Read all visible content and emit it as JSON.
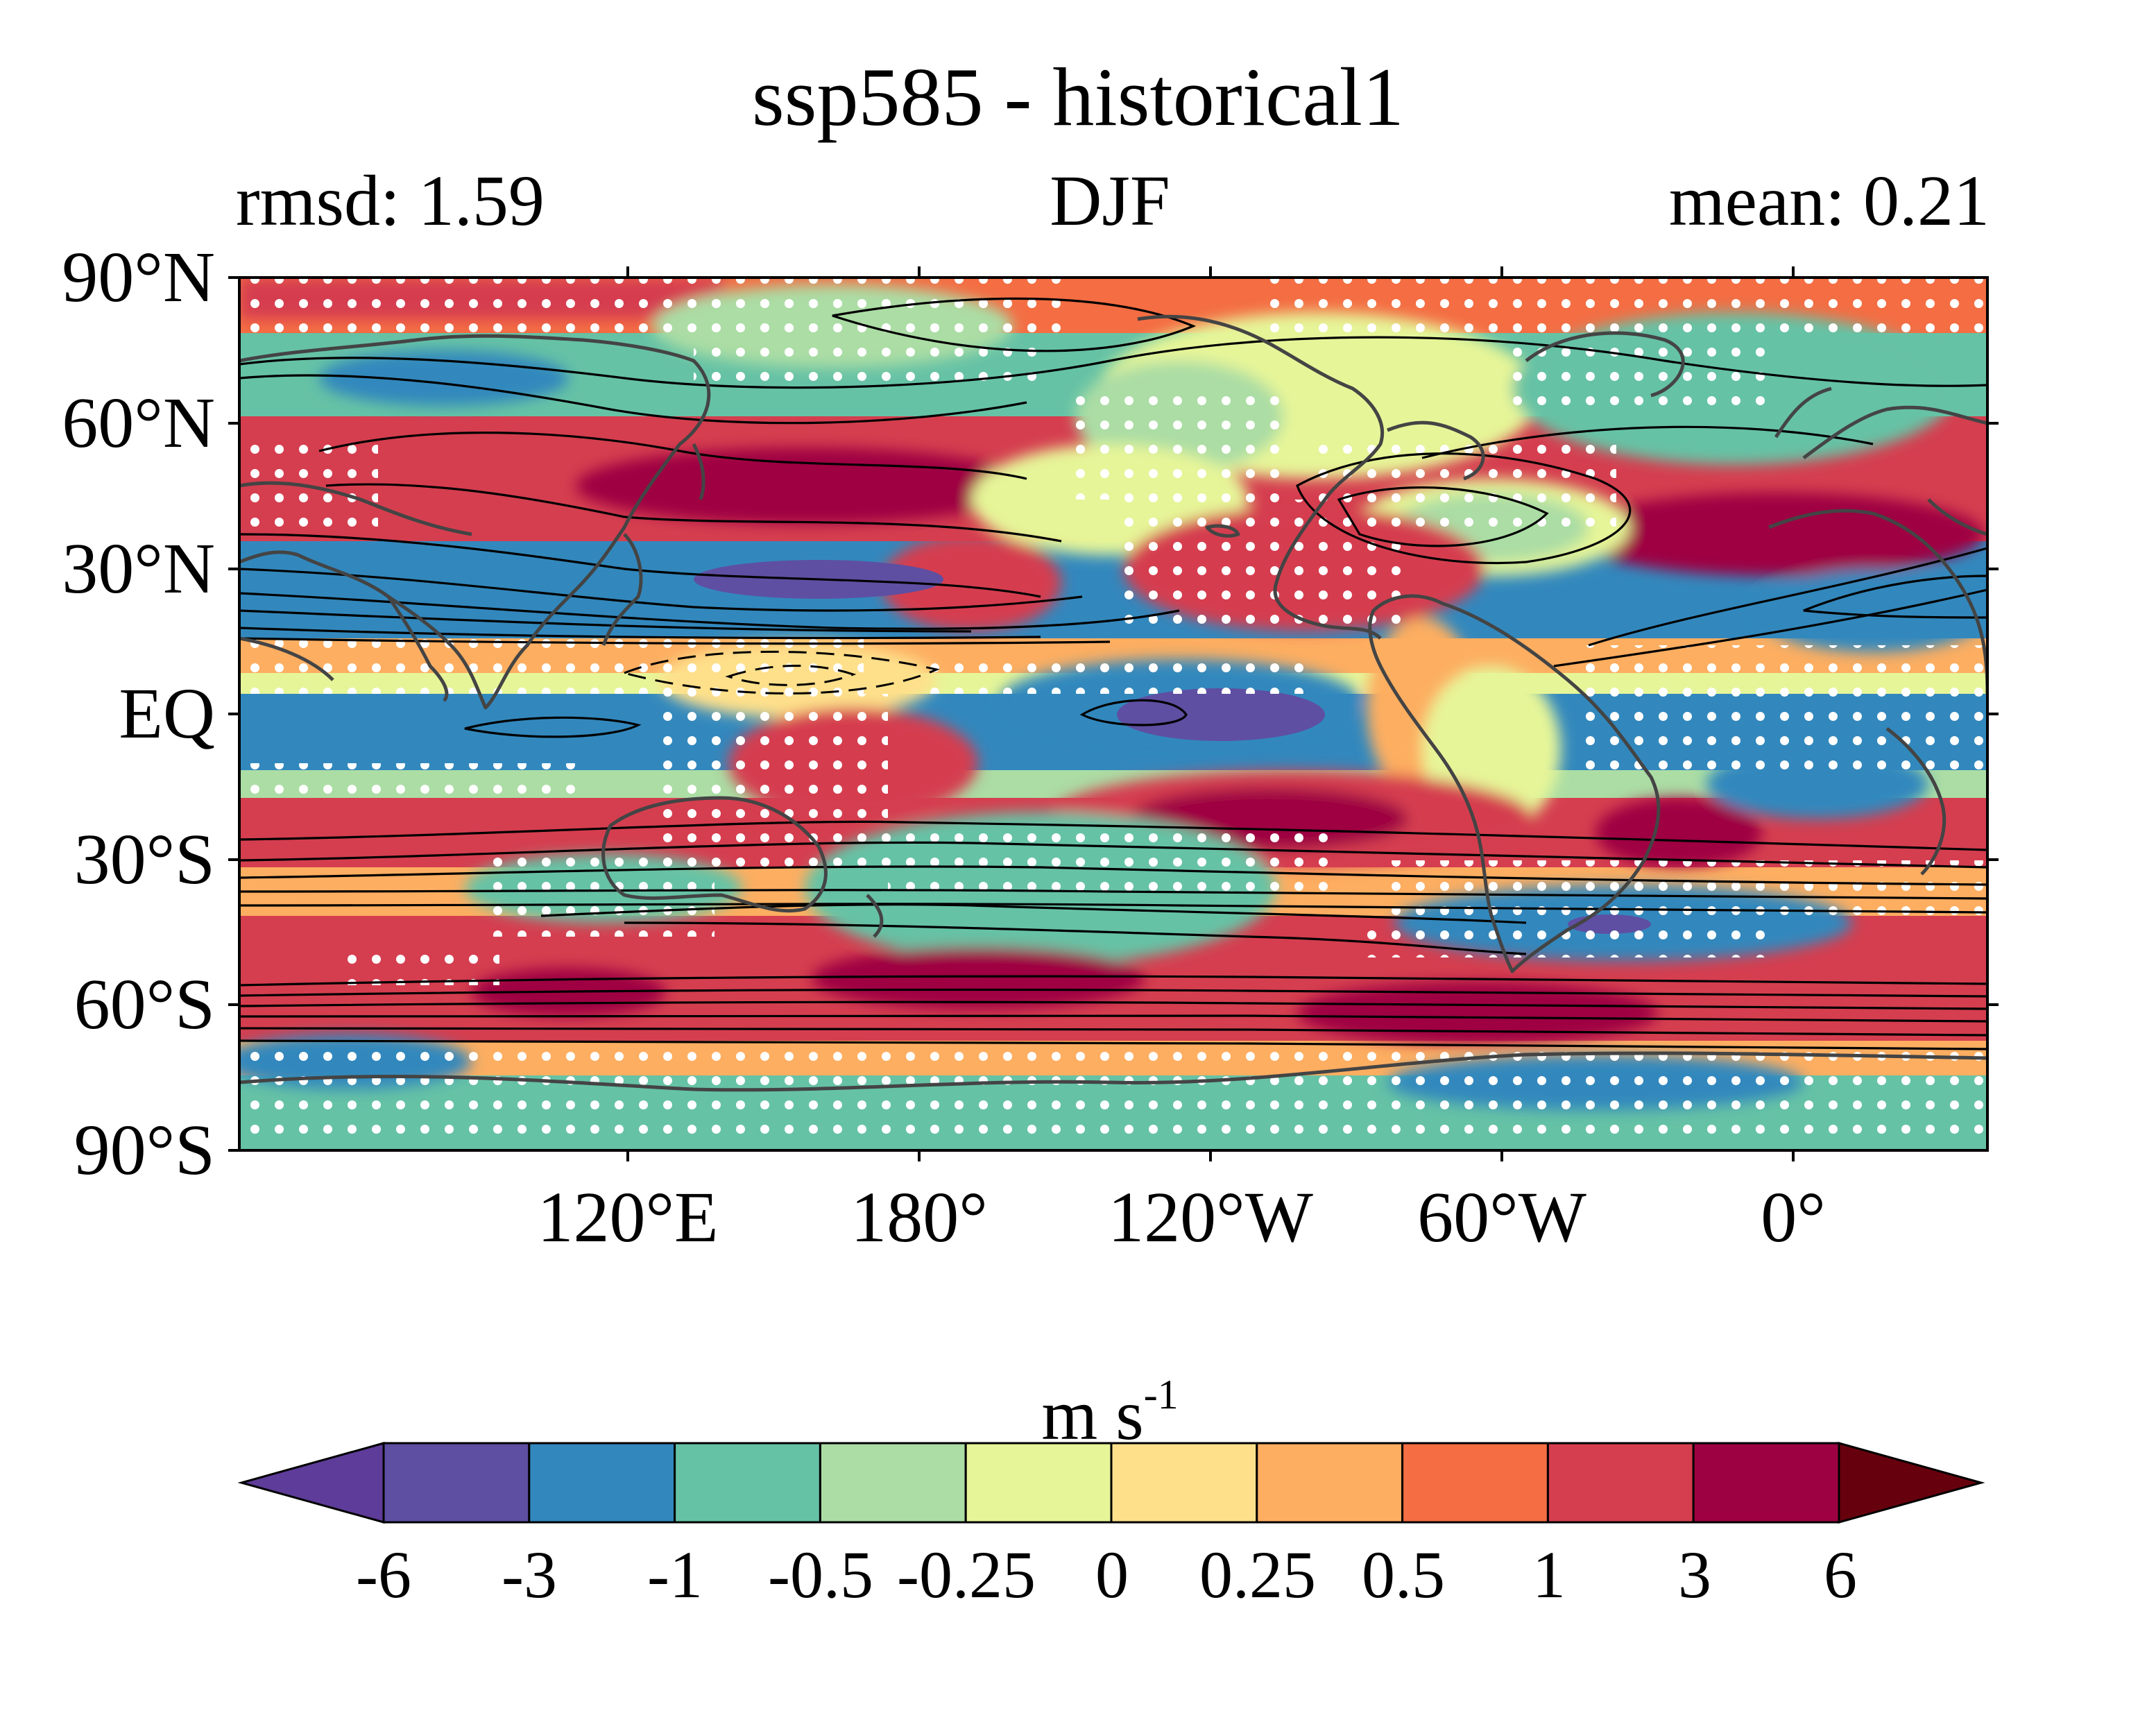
{
  "figure": {
    "title": "ssp585 - historical1",
    "rmsd_label": "rmsd: 1.59",
    "season": "DJF",
    "mean_label": "mean: 0.21"
  },
  "map": {
    "lat_labels": [
      "90°N",
      "60°N",
      "30°N",
      "EQ",
      "30°S",
      "60°S",
      "90°S"
    ],
    "lon_labels": [
      "120°E",
      "180°",
      "120°W",
      "60°W",
      "0°"
    ],
    "stippling": "white dots (significance)",
    "contours": "black climatology contour lines, dashed = negative",
    "coastlines": "gray"
  },
  "colorbar": {
    "units": "m s",
    "units_exponent": "-1",
    "tick_labels": [
      "-6",
      "-3",
      "-1",
      "-0.5",
      "-0.25",
      "0",
      "0.25",
      "0.5",
      "1",
      "3",
      "6"
    ],
    "levels": [
      -6,
      -3,
      -1,
      -0.5,
      -0.25,
      0,
      0.25,
      0.5,
      1,
      3,
      6
    ],
    "under_color": "#5e3c99",
    "over_color": "#67000d",
    "colors": [
      "#5e4fa2",
      "#3288bd",
      "#66c2a5",
      "#abdda4",
      "#e6f598",
      "#fee08b",
      "#fdae61",
      "#f46d43",
      "#d53e4f",
      "#9e0142"
    ]
  },
  "chart_data": {
    "type": "heatmap",
    "title": "ssp585 - historical1",
    "subtitle_left": "rmsd: 1.59",
    "subtitle_center": "DJF",
    "subtitle_right": "mean: 0.21",
    "xlabel": "",
    "ylabel": "",
    "x_ticks": [
      "120°E",
      "180°",
      "120°W",
      "60°W",
      "0°"
    ],
    "y_ticks": [
      "90°N",
      "60°N",
      "30°N",
      "EQ",
      "30°S",
      "60°S",
      "90°S"
    ],
    "lon_range": [
      40,
      400
    ],
    "lat_range": [
      -90,
      90
    ],
    "colorbar_label": "m s-1",
    "colorbar_levels": [
      -6,
      -3,
      -1,
      -0.5,
      -0.25,
      0,
      0.25,
      0.5,
      1,
      3,
      6
    ],
    "anomaly_features": [
      {
        "lon": 200,
        "lat": 28,
        "value": -4
      },
      {
        "lon": 160,
        "lat": 46,
        "value": 2
      },
      {
        "lon": 226,
        "lat": 0,
        "value": -4
      },
      {
        "lon": 325,
        "lat": 38,
        "value": 3
      },
      {
        "lon": 246,
        "lat": -21,
        "value": 3
      },
      {
        "lon": 355,
        "lat": -24,
        "value": 3
      },
      {
        "lon": 225,
        "lat": -35,
        "value": -2
      },
      {
        "lon": 330,
        "lat": -44,
        "value": -3
      },
      {
        "lon": 125,
        "lat": -58,
        "value": 3
      },
      {
        "lon": 205,
        "lat": -56,
        "value": 3
      },
      {
        "lon": 295,
        "lat": -62,
        "value": 3
      },
      {
        "lon": 100,
        "lat": -12,
        "value": -1.5
      },
      {
        "lon": 60,
        "lat": 23,
        "value": -1.5
      },
      {
        "lon": 345,
        "lat": 20,
        "value": -1.5
      }
    ]
  }
}
